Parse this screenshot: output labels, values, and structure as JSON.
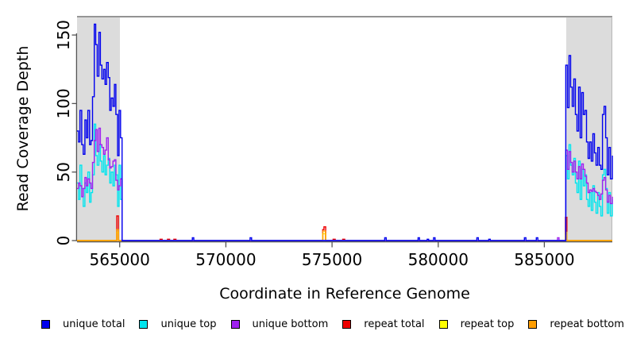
{
  "chart_data": {
    "type": "line",
    "line_style": "step",
    "title": "",
    "xlabel": "Coordinate in Reference Genome",
    "ylabel": "Read Coverage Depth",
    "x_tick_values": [
      565000,
      570000,
      575000,
      580000,
      585000
    ],
    "x_tick_labels": [
      "565000",
      "570000",
      "575000",
      "580000",
      "585000"
    ],
    "y_tick_values": [
      0,
      50,
      100,
      150
    ],
    "y_tick_labels": [
      "0",
      "50",
      "100",
      "150"
    ],
    "xlim": [
      562990,
      588200
    ],
    "ylim": [
      0,
      164
    ],
    "grid": false,
    "legend_position": "bottom",
    "region_color": "#dcdcdc",
    "highlight_regions": [
      {
        "x0": 562990,
        "x1": 565010
      },
      {
        "x0": 586030,
        "x1": 588200
      }
    ],
    "draw_order": [
      3,
      4,
      5,
      1,
      2,
      0
    ],
    "series": [
      {
        "name": "unique total",
        "color": "#0000ee",
        "points": [
          [
            562990,
            80
          ],
          [
            563060,
            72
          ],
          [
            563130,
            95
          ],
          [
            563210,
            70
          ],
          [
            563280,
            63
          ],
          [
            563360,
            88
          ],
          [
            563430,
            75
          ],
          [
            563500,
            95
          ],
          [
            563580,
            70
          ],
          [
            563650,
            73
          ],
          [
            563720,
            105
          ],
          [
            563800,
            158
          ],
          [
            563870,
            143
          ],
          [
            563940,
            120
          ],
          [
            564020,
            152
          ],
          [
            564090,
            128
          ],
          [
            564160,
            118
          ],
          [
            564240,
            125
          ],
          [
            564310,
            114
          ],
          [
            564380,
            130
          ],
          [
            564460,
            119
          ],
          [
            564530,
            95
          ],
          [
            564600,
            104
          ],
          [
            564680,
            98
          ],
          [
            564750,
            114
          ],
          [
            564820,
            92
          ],
          [
            564900,
            62
          ],
          [
            564970,
            95
          ],
          [
            565040,
            75
          ],
          [
            565110,
            0
          ],
          [
            568420,
            2
          ],
          [
            568490,
            0
          ],
          [
            571140,
            2
          ],
          [
            571210,
            0
          ],
          [
            577480,
            2
          ],
          [
            577550,
            0
          ],
          [
            579050,
            2
          ],
          [
            579120,
            0
          ],
          [
            579480,
            1
          ],
          [
            579550,
            0
          ],
          [
            579780,
            2
          ],
          [
            579850,
            0
          ],
          [
            581820,
            2
          ],
          [
            581890,
            0
          ],
          [
            582380,
            1
          ],
          [
            582450,
            0
          ],
          [
            584060,
            2
          ],
          [
            584130,
            0
          ],
          [
            584620,
            2
          ],
          [
            584690,
            0
          ],
          [
            586010,
            128
          ],
          [
            586085,
            97
          ],
          [
            586160,
            135
          ],
          [
            586235,
            112
          ],
          [
            586310,
            98
          ],
          [
            586385,
            118
          ],
          [
            586460,
            92
          ],
          [
            586535,
            80
          ],
          [
            586610,
            112
          ],
          [
            586685,
            75
          ],
          [
            586760,
            108
          ],
          [
            586835,
            92
          ],
          [
            586910,
            95
          ],
          [
            586985,
            72
          ],
          [
            587060,
            60
          ],
          [
            587135,
            72
          ],
          [
            587210,
            58
          ],
          [
            587285,
            78
          ],
          [
            587360,
            64
          ],
          [
            587435,
            55
          ],
          [
            587510,
            68
          ],
          [
            587585,
            55
          ],
          [
            587660,
            52
          ],
          [
            587735,
            92
          ],
          [
            587810,
            98
          ],
          [
            587885,
            75
          ],
          [
            587960,
            48
          ],
          [
            588035,
            68
          ],
          [
            588110,
            45
          ],
          [
            588200,
            62
          ]
        ]
      },
      {
        "name": "unique top",
        "color": "#00e5ee",
        "points": [
          [
            562990,
            42
          ],
          [
            563060,
            30
          ],
          [
            563130,
            55
          ],
          [
            563210,
            38
          ],
          [
            563280,
            25
          ],
          [
            563360,
            42
          ],
          [
            563430,
            35
          ],
          [
            563500,
            50
          ],
          [
            563580,
            28
          ],
          [
            563650,
            35
          ],
          [
            563720,
            48
          ],
          [
            563800,
            85
          ],
          [
            563870,
            62
          ],
          [
            563940,
            55
          ],
          [
            564020,
            70
          ],
          [
            564090,
            58
          ],
          [
            564160,
            50
          ],
          [
            564240,
            62
          ],
          [
            564310,
            48
          ],
          [
            564380,
            55
          ],
          [
            564460,
            60
          ],
          [
            564530,
            42
          ],
          [
            564600,
            50
          ],
          [
            564680,
            40
          ],
          [
            564750,
            55
          ],
          [
            564820,
            48
          ],
          [
            564900,
            25
          ],
          [
            564970,
            55
          ],
          [
            565040,
            30
          ],
          [
            565110,
            0
          ],
          [
            586010,
            62
          ],
          [
            586085,
            45
          ],
          [
            586160,
            70
          ],
          [
            586235,
            55
          ],
          [
            586310,
            48
          ],
          [
            586385,
            60
          ],
          [
            586460,
            42
          ],
          [
            586535,
            35
          ],
          [
            586610,
            58
          ],
          [
            586685,
            30
          ],
          [
            586760,
            52
          ],
          [
            586835,
            40
          ],
          [
            586910,
            48
          ],
          [
            586985,
            30
          ],
          [
            587060,
            25
          ],
          [
            587135,
            35
          ],
          [
            587210,
            22
          ],
          [
            587285,
            40
          ],
          [
            587360,
            28
          ],
          [
            587435,
            20
          ],
          [
            587510,
            35
          ],
          [
            587585,
            25
          ],
          [
            587660,
            18
          ],
          [
            587735,
            48
          ],
          [
            587810,
            52
          ],
          [
            587885,
            38
          ],
          [
            587960,
            20
          ],
          [
            588035,
            35
          ],
          [
            588110,
            18
          ],
          [
            588200,
            30
          ]
        ]
      },
      {
        "name": "unique bottom",
        "color": "#a020f0",
        "points": [
          [
            562990,
            38
          ],
          [
            563060,
            42
          ],
          [
            563130,
            40
          ],
          [
            563210,
            32
          ],
          [
            563280,
            38
          ],
          [
            563360,
            46
          ],
          [
            563430,
            40
          ],
          [
            563500,
            45
          ],
          [
            563580,
            42
          ],
          [
            563650,
            38
          ],
          [
            563720,
            57
          ],
          [
            563800,
            73
          ],
          [
            563870,
            81
          ],
          [
            563940,
            65
          ],
          [
            564020,
            82
          ],
          [
            564090,
            70
          ],
          [
            564160,
            68
          ],
          [
            564240,
            63
          ],
          [
            564310,
            66
          ],
          [
            564380,
            75
          ],
          [
            564460,
            59
          ],
          [
            564530,
            53
          ],
          [
            564600,
            54
          ],
          [
            564680,
            58
          ],
          [
            564750,
            59
          ],
          [
            564820,
            44
          ],
          [
            564900,
            37
          ],
          [
            564970,
            40
          ],
          [
            565040,
            45
          ],
          [
            565110,
            0
          ],
          [
            585620,
            2
          ],
          [
            585690,
            0
          ],
          [
            586010,
            66
          ],
          [
            586085,
            52
          ],
          [
            586160,
            65
          ],
          [
            586235,
            57
          ],
          [
            586310,
            50
          ],
          [
            586385,
            58
          ],
          [
            586460,
            50
          ],
          [
            586535,
            45
          ],
          [
            586610,
            54
          ],
          [
            586685,
            45
          ],
          [
            586760,
            56
          ],
          [
            586835,
            52
          ],
          [
            586910,
            47
          ],
          [
            586985,
            42
          ],
          [
            587060,
            35
          ],
          [
            587135,
            37
          ],
          [
            587210,
            36
          ],
          [
            587285,
            38
          ],
          [
            587360,
            36
          ],
          [
            587435,
            35
          ],
          [
            587510,
            33
          ],
          [
            587585,
            30
          ],
          [
            587660,
            34
          ],
          [
            587735,
            44
          ],
          [
            587810,
            46
          ],
          [
            587885,
            37
          ],
          [
            587960,
            28
          ],
          [
            588035,
            33
          ],
          [
            588110,
            27
          ],
          [
            588200,
            32
          ]
        ]
      },
      {
        "name": "repeat total",
        "color": "#ee0000",
        "points": [
          [
            562990,
            0
          ],
          [
            564860,
            18
          ],
          [
            564940,
            0
          ],
          [
            566900,
            1
          ],
          [
            567000,
            0
          ],
          [
            567250,
            1
          ],
          [
            567350,
            0
          ],
          [
            567550,
            1
          ],
          [
            567650,
            0
          ],
          [
            574560,
            8
          ],
          [
            574620,
            10
          ],
          [
            574700,
            0
          ],
          [
            575050,
            1
          ],
          [
            575150,
            0
          ],
          [
            575500,
            1
          ],
          [
            575600,
            0
          ],
          [
            585990,
            17
          ],
          [
            586060,
            0
          ],
          [
            588200,
            0
          ]
        ]
      },
      {
        "name": "repeat top",
        "color": "#ffff00",
        "points": [
          [
            562990,
            0
          ],
          [
            564860,
            6
          ],
          [
            564940,
            0
          ],
          [
            574560,
            5
          ],
          [
            574700,
            0
          ],
          [
            585990,
            4
          ],
          [
            586060,
            0
          ],
          [
            588200,
            0
          ]
        ]
      },
      {
        "name": "repeat bottom",
        "color": "#ff9d00",
        "points": [
          [
            562990,
            0
          ],
          [
            564860,
            8
          ],
          [
            564940,
            0
          ],
          [
            574570,
            7
          ],
          [
            574690,
            0
          ],
          [
            585990,
            6
          ],
          [
            586060,
            0
          ],
          [
            588200,
            0
          ]
        ]
      }
    ]
  }
}
